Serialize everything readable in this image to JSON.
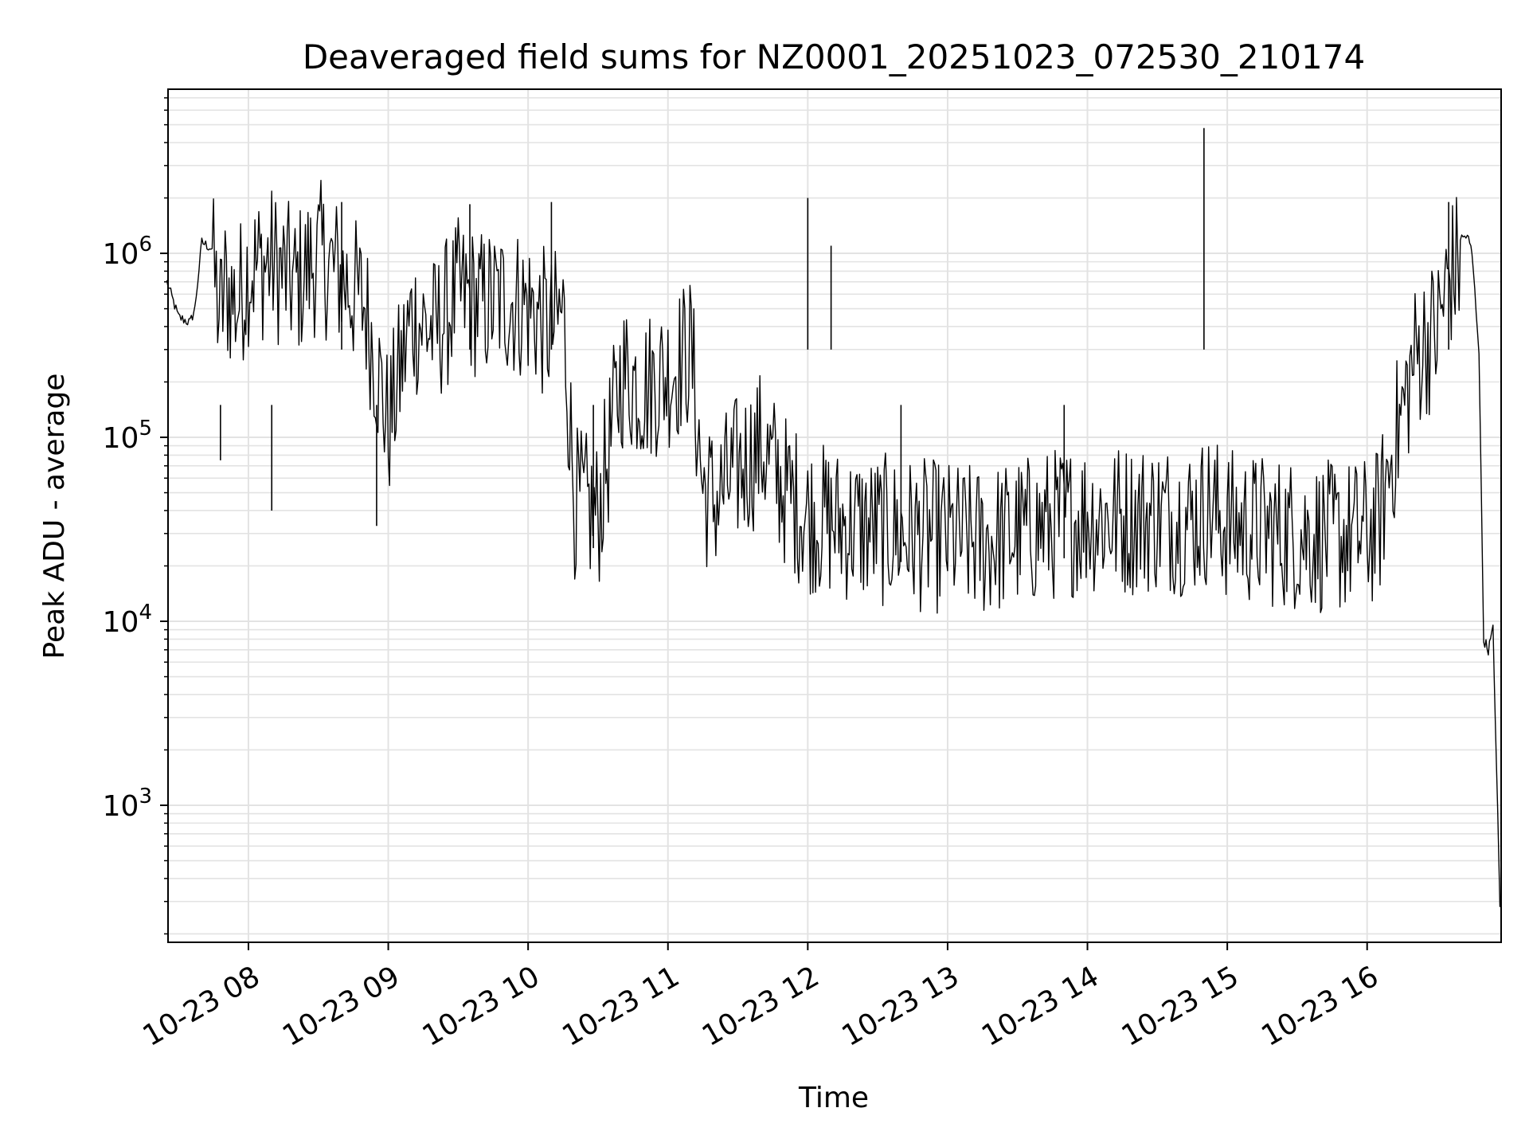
{
  "chart_data": {
    "type": "line",
    "title": "Deaveraged field sums for NZ0001_20251023_072530_210174",
    "xlabel": "Time",
    "ylabel": "Peak ADU - average",
    "yscale": "log",
    "xlim": [
      "2025-10-23 07:25:30",
      "2025-10-23 16:57:30"
    ],
    "ylim": [
      180,
      7800000
    ],
    "grid": true,
    "line_color": "#000000",
    "grid_color": "#e3e3e3",
    "x_ticks": [
      {
        "value": "2025-10-23 08:00",
        "label": "10-23 08"
      },
      {
        "value": "2025-10-23 09:00",
        "label": "10-23 09"
      },
      {
        "value": "2025-10-23 10:00",
        "label": "10-23 10"
      },
      {
        "value": "2025-10-23 11:00",
        "label": "10-23 11"
      },
      {
        "value": "2025-10-23 12:00",
        "label": "10-23 12"
      },
      {
        "value": "2025-10-23 13:00",
        "label": "10-23 13"
      },
      {
        "value": "2025-10-23 14:00",
        "label": "10-23 14"
      },
      {
        "value": "2025-10-23 15:00",
        "label": "10-23 15"
      },
      {
        "value": "2025-10-23 16:00",
        "label": "10-23 16"
      }
    ],
    "y_ticks": [
      {
        "value": 1000,
        "base": "10",
        "exp": "3"
      },
      {
        "value": 10000,
        "base": "10",
        "exp": "4"
      },
      {
        "value": 100000,
        "base": "10",
        "exp": "5"
      },
      {
        "value": 1000000,
        "base": "10",
        "exp": "6"
      }
    ],
    "series": [
      {
        "x": [
          "2025-10-23 07:25",
          "2025-10-23 07:30",
          "2025-10-23 07:35",
          "2025-10-23 07:37",
          "2025-10-23 07:40",
          "2025-10-23 07:45",
          "2025-10-23 07:48",
          "2025-10-23 07:50",
          "2025-10-23 07:55",
          "2025-10-23 08:00",
          "2025-10-23 08:10",
          "2025-10-23 08:20",
          "2025-10-23 08:30",
          "2025-10-23 08:40",
          "2025-10-23 08:50",
          "2025-10-23 09:00",
          "2025-10-23 09:10",
          "2025-10-23 09:20",
          "2025-10-23 09:30",
          "2025-10-23 09:40",
          "2025-10-23 09:50",
          "2025-10-23 10:00",
          "2025-10-23 10:10",
          "2025-10-23 10:15",
          "2025-10-23 10:20",
          "2025-10-23 10:30",
          "2025-10-23 10:40",
          "2025-10-23 10:50",
          "2025-10-23 11:00",
          "2025-10-23 11:10",
          "2025-10-23 11:15",
          "2025-10-23 11:20",
          "2025-10-23 11:30",
          "2025-10-23 11:40",
          "2025-10-23 11:50",
          "2025-10-23 12:00",
          "2025-10-23 12:15",
          "2025-10-23 12:30",
          "2025-10-23 12:45",
          "2025-10-23 13:00",
          "2025-10-23 13:15",
          "2025-10-23 13:30",
          "2025-10-23 13:45",
          "2025-10-23 14:00",
          "2025-10-23 14:15",
          "2025-10-23 14:30",
          "2025-10-23 14:45",
          "2025-10-23 14:52",
          "2025-10-23 15:00",
          "2025-10-23 15:15",
          "2025-10-23 15:30",
          "2025-10-23 15:45",
          "2025-10-23 16:00",
          "2025-10-23 16:05",
          "2025-10-23 16:10",
          "2025-10-23 16:15",
          "2025-10-23 16:20",
          "2025-10-23 16:25",
          "2025-10-23 16:30",
          "2025-10-23 16:35",
          "2025-10-23 16:40",
          "2025-10-23 16:43",
          "2025-10-23 16:45",
          "2025-10-23 16:48",
          "2025-10-23 16:50",
          "2025-10-23 16:52",
          "2025-10-23 16:54",
          "2025-10-23 16:55",
          "2025-10-23 16:57"
        ],
        "y": [
          700000,
          450000,
          420000,
          500000,
          1150000,
          1050000,
          600000,
          900000,
          700000,
          1100000,
          1200000,
          900000,
          1300000,
          1000000,
          700000,
          150000,
          600000,
          500000,
          800000,
          700000,
          750000,
          700000,
          500000,
          650000,
          60000,
          50000,
          300000,
          250000,
          300000,
          400000,
          70000,
          60000,
          90000,
          120000,
          70000,
          50000,
          45000,
          42000,
          40000,
          38000,
          36000,
          40000,
          45000,
          50000,
          48000,
          50000,
          48000,
          55000,
          45000,
          42000,
          40000,
          38000,
          40000,
          45000,
          100000,
          180000,
          350000,
          450000,
          500000,
          1000000,
          1200000,
          1250000,
          1000000,
          300000,
          8000,
          7000,
          9000,
          3000,
          280
        ]
      }
    ],
    "spikes": [
      {
        "x": "2025-10-23 07:48",
        "y": 75000
      },
      {
        "x": "2025-10-23 08:10",
        "y": 40000
      },
      {
        "x": "2025-10-23 08:40",
        "y": 1900000
      },
      {
        "x": "2025-10-23 08:55",
        "y": 33000
      },
      {
        "x": "2025-10-23 09:35",
        "y": 1850000
      },
      {
        "x": "2025-10-23 10:10",
        "y": 1900000
      },
      {
        "x": "2025-10-23 10:28",
        "y": 25000
      },
      {
        "x": "2025-10-23 12:00",
        "y": 2000000
      },
      {
        "x": "2025-10-23 12:10",
        "y": 1100000
      },
      {
        "x": "2025-10-23 12:40",
        "y": 21000
      },
      {
        "x": "2025-10-23 13:50",
        "y": 22000
      },
      {
        "x": "2025-10-23 14:50",
        "y": 4800000
      },
      {
        "x": "2025-10-23 16:35",
        "y": 1900000
      }
    ]
  }
}
